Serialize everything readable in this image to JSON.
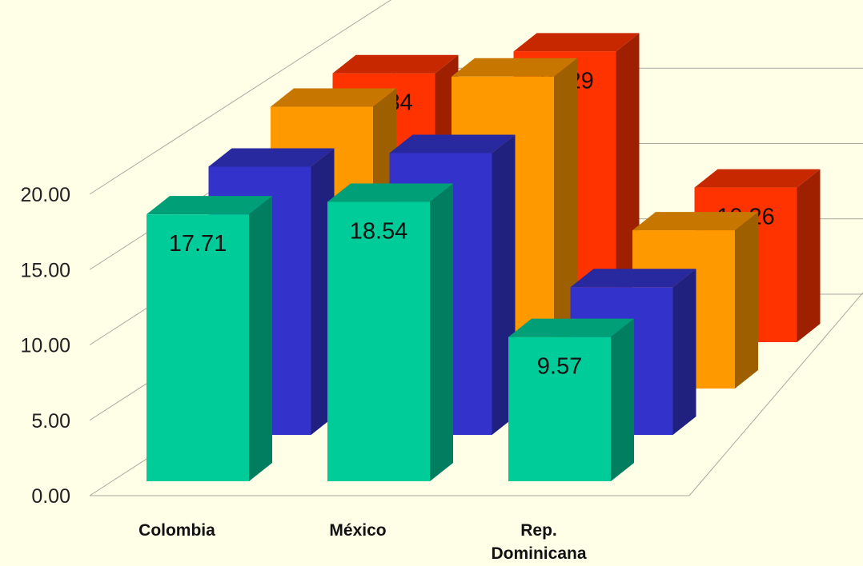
{
  "chart_data": {
    "type": "bar",
    "title": "",
    "xlabel": "",
    "ylabel": "",
    "ylim": [
      0,
      20
    ],
    "yticks": [
      "0.00",
      "5.00",
      "10.00",
      "15.00",
      "20.00"
    ],
    "categories": [
      "Colombia",
      "México",
      "Rep. Dominicana"
    ],
    "category_lines": [
      [
        "Colombia"
      ],
      [
        "México"
      ],
      [
        "Rep.",
        "Dominicana"
      ]
    ],
    "series": [
      {
        "values": [
          17.71,
          18.54,
          9.57
        ],
        "labels": [
          "17.71",
          "18.54",
          "9.57"
        ],
        "color": "#00CC99"
      },
      {
        "values": [
          17.8,
          18.7,
          9.8
        ],
        "labels": [
          null,
          null,
          null
        ],
        "color": "#3333CC"
      },
      {
        "values": [
          18.7,
          20.7,
          10.5
        ],
        "labels": [
          null,
          null,
          null
        ],
        "color": "#FF9900"
      },
      {
        "values": [
          17.84,
          19.29,
          10.26
        ],
        "labels": [
          "17.84",
          "19.29",
          "10.26"
        ],
        "color": "#FF3300"
      }
    ],
    "grid": true,
    "legend": "none",
    "style": "3d-clustered-bar"
  }
}
